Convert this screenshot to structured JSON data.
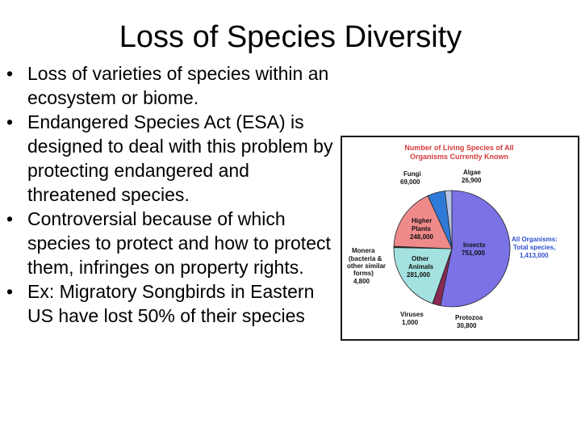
{
  "slide": {
    "title": "Loss of Species Diversity",
    "bullets": [
      "Loss of varieties of species within an ecosystem or biome.",
      "Endangered Species Act (ESA) is designed to deal with this problem by protecting endangered and threatened species.",
      "Controversial because of which species to protect and how to protect them, infringes on property rights.",
      "Ex: Migratory Songbirds in Eastern US have lost 50% of their species"
    ]
  },
  "chart_data": {
    "type": "pie",
    "title_lines": [
      "Number of Living Species of All",
      "Organisms Currently Known"
    ],
    "total_label_lines": [
      "All Organisms:",
      "Total species,",
      "1,413,000"
    ],
    "slices": [
      {
        "name_lines": [
          "Insects"
        ],
        "value_text": "751,000",
        "value": 751000,
        "color": "#7b72e6"
      },
      {
        "name_lines": [
          "Protozoa"
        ],
        "value_text": "30,800",
        "value": 30800,
        "color": "#8a2a52"
      },
      {
        "name_lines": [
          "Viruses"
        ],
        "value_text": "1,000",
        "value": 1000,
        "color": "#d8d0f4"
      },
      {
        "name_lines": [
          "Other",
          "Animals"
        ],
        "value_text": "281,000",
        "value": 281000,
        "color": "#a3e2e0"
      },
      {
        "name_lines": [
          "Monera",
          "(bacteria &",
          "other similar",
          "forms)"
        ],
        "value_text": "4,800",
        "value": 4800,
        "color": "#3a2c1e"
      },
      {
        "name_lines": [
          "Higher",
          "Plants"
        ],
        "value_text": "248,000",
        "value": 248000,
        "color": "#ef8a8a"
      },
      {
        "name_lines": [
          "Fungi"
        ],
        "value_text": "69,000",
        "value": 69000,
        "color": "#2f7ad6"
      },
      {
        "name_lines": [
          "Algae"
        ],
        "value_text": "26,900",
        "value": 26900,
        "color": "#b6c6ea"
      }
    ]
  }
}
